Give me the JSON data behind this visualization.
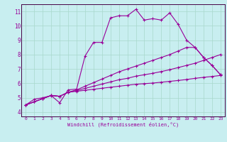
{
  "xlabel": "Windchill (Refroidissement éolien,°C)",
  "background_color": "#c8eef0",
  "grid_color": "#a8d8cc",
  "line_color": "#990099",
  "axis_color": "#440044",
  "xlim": [
    -0.5,
    23.5
  ],
  "ylim": [
    3.7,
    11.5
  ],
  "xticks": [
    0,
    1,
    2,
    3,
    4,
    5,
    6,
    7,
    8,
    9,
    10,
    11,
    12,
    13,
    14,
    15,
    16,
    17,
    18,
    19,
    20,
    21,
    22,
    23
  ],
  "yticks": [
    4,
    5,
    6,
    7,
    8,
    9,
    10,
    11
  ],
  "line1_x": [
    0,
    1,
    2,
    3,
    4,
    5,
    6,
    7,
    8,
    9,
    10,
    11,
    12,
    13,
    14,
    15,
    16,
    17,
    18,
    19,
    20,
    21,
    22,
    23
  ],
  "line1_y": [
    4.5,
    4.9,
    5.0,
    5.15,
    4.65,
    5.55,
    5.6,
    7.9,
    8.85,
    8.85,
    10.55,
    10.7,
    10.7,
    11.15,
    10.4,
    10.5,
    10.4,
    10.9,
    10.1,
    9.0,
    8.5,
    7.8,
    7.25,
    6.6
  ],
  "line2_x": [
    0,
    1,
    2,
    3,
    4,
    5,
    6,
    7,
    8,
    9,
    10,
    11,
    12,
    13,
    14,
    15,
    16,
    17,
    18,
    19,
    20,
    21,
    22,
    23
  ],
  "line2_y": [
    4.5,
    4.72,
    4.94,
    5.16,
    5.1,
    5.38,
    5.45,
    5.52,
    5.59,
    5.66,
    5.73,
    5.8,
    5.87,
    5.94,
    5.98,
    6.02,
    6.08,
    6.14,
    6.2,
    6.27,
    6.35,
    6.42,
    6.48,
    6.55
  ],
  "line3_x": [
    0,
    1,
    2,
    3,
    4,
    5,
    6,
    7,
    8,
    9,
    10,
    11,
    12,
    13,
    14,
    15,
    16,
    17,
    18,
    19,
    20,
    21,
    22,
    23
  ],
  "line3_y": [
    4.5,
    4.72,
    4.94,
    5.16,
    5.1,
    5.38,
    5.5,
    5.65,
    5.8,
    5.95,
    6.1,
    6.25,
    6.35,
    6.5,
    6.6,
    6.7,
    6.82,
    6.95,
    7.1,
    7.25,
    7.4,
    7.6,
    7.8,
    8.0
  ],
  "line4_x": [
    0,
    1,
    2,
    3,
    4,
    5,
    6,
    7,
    8,
    9,
    10,
    11,
    12,
    13,
    14,
    15,
    16,
    17,
    18,
    19,
    20,
    21,
    22,
    23
  ],
  "line4_y": [
    4.5,
    4.72,
    4.94,
    5.16,
    5.1,
    5.38,
    5.55,
    5.8,
    6.05,
    6.3,
    6.55,
    6.8,
    7.0,
    7.2,
    7.4,
    7.6,
    7.8,
    8.0,
    8.25,
    8.5,
    8.5,
    7.8,
    7.25,
    6.6
  ]
}
